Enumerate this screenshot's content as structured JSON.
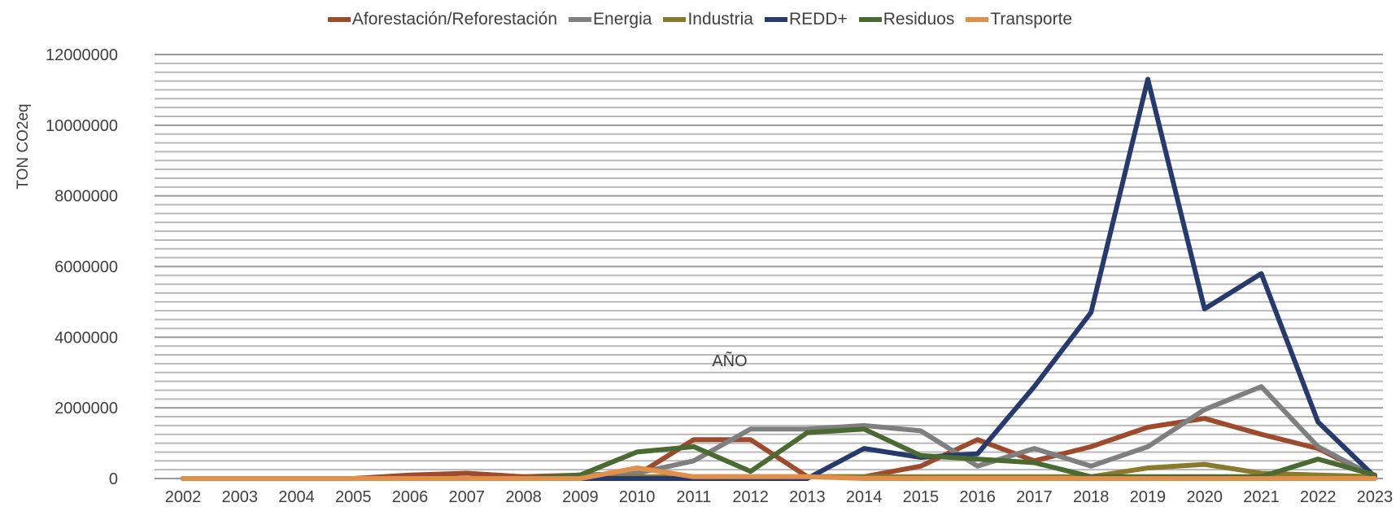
{
  "chart_data": {
    "type": "line",
    "title": "",
    "xlabel": "",
    "ylabel": "TON CO2eq",
    "annotation": "AÑO",
    "ylim": [
      0,
      12000000
    ],
    "yticks": [
      0,
      2000000,
      4000000,
      6000000,
      8000000,
      10000000,
      12000000
    ],
    "ytick_labels": [
      "0",
      "2000000",
      "4000000",
      "6000000",
      "8000000",
      "10000000",
      "12000000"
    ],
    "grid": true,
    "legend_position": "top",
    "x": [
      "2002",
      "2003",
      "2004",
      "2005",
      "2006",
      "2007",
      "2008",
      "2009",
      "2010",
      "2011",
      "2012",
      "2013",
      "2014",
      "2015",
      "2016",
      "2017",
      "2018",
      "2019",
      "2020",
      "2021",
      "2022",
      "2023"
    ],
    "series": [
      {
        "name": "Aforestación/Reforestación",
        "color": "#9e4a2c",
        "values": [
          0,
          0,
          0,
          0,
          100000,
          150000,
          50000,
          100000,
          100000,
          1100000,
          1100000,
          50000,
          50000,
          350000,
          1100000,
          500000,
          900000,
          1450000,
          1700000,
          1250000,
          850000,
          50000
        ]
      },
      {
        "name": "Energia",
        "color": "#7f7f7f",
        "values": [
          0,
          0,
          0,
          0,
          0,
          0,
          0,
          100000,
          150000,
          500000,
          1400000,
          1400000,
          1500000,
          1350000,
          350000,
          850000,
          350000,
          900000,
          1950000,
          2600000,
          900000,
          50000
        ]
      },
      {
        "name": "Industria",
        "color": "#8a7a2e",
        "values": [
          0,
          0,
          0,
          0,
          0,
          0,
          0,
          0,
          50000,
          50000,
          50000,
          50000,
          50000,
          50000,
          50000,
          50000,
          50000,
          300000,
          400000,
          150000,
          100000,
          50000
        ]
      },
      {
        "name": "REDD+",
        "color": "#263a6e",
        "values": [
          0,
          0,
          0,
          0,
          0,
          0,
          0,
          0,
          0,
          0,
          0,
          0,
          850000,
          600000,
          700000,
          2600000,
          4700000,
          11300000,
          4800000,
          5800000,
          1600000,
          50000
        ]
      },
      {
        "name": "Residuos",
        "color": "#4a6a32",
        "values": [
          0,
          0,
          0,
          0,
          0,
          0,
          0,
          100000,
          750000,
          900000,
          200000,
          1300000,
          1400000,
          650000,
          550000,
          450000,
          50000,
          50000,
          50000,
          50000,
          550000,
          100000
        ]
      },
      {
        "name": "Transporte",
        "color": "#e0904a",
        "values": [
          0,
          0,
          0,
          0,
          0,
          0,
          0,
          0,
          300000,
          50000,
          50000,
          50000,
          0,
          0,
          0,
          0,
          0,
          0,
          0,
          0,
          0,
          0
        ]
      }
    ]
  }
}
